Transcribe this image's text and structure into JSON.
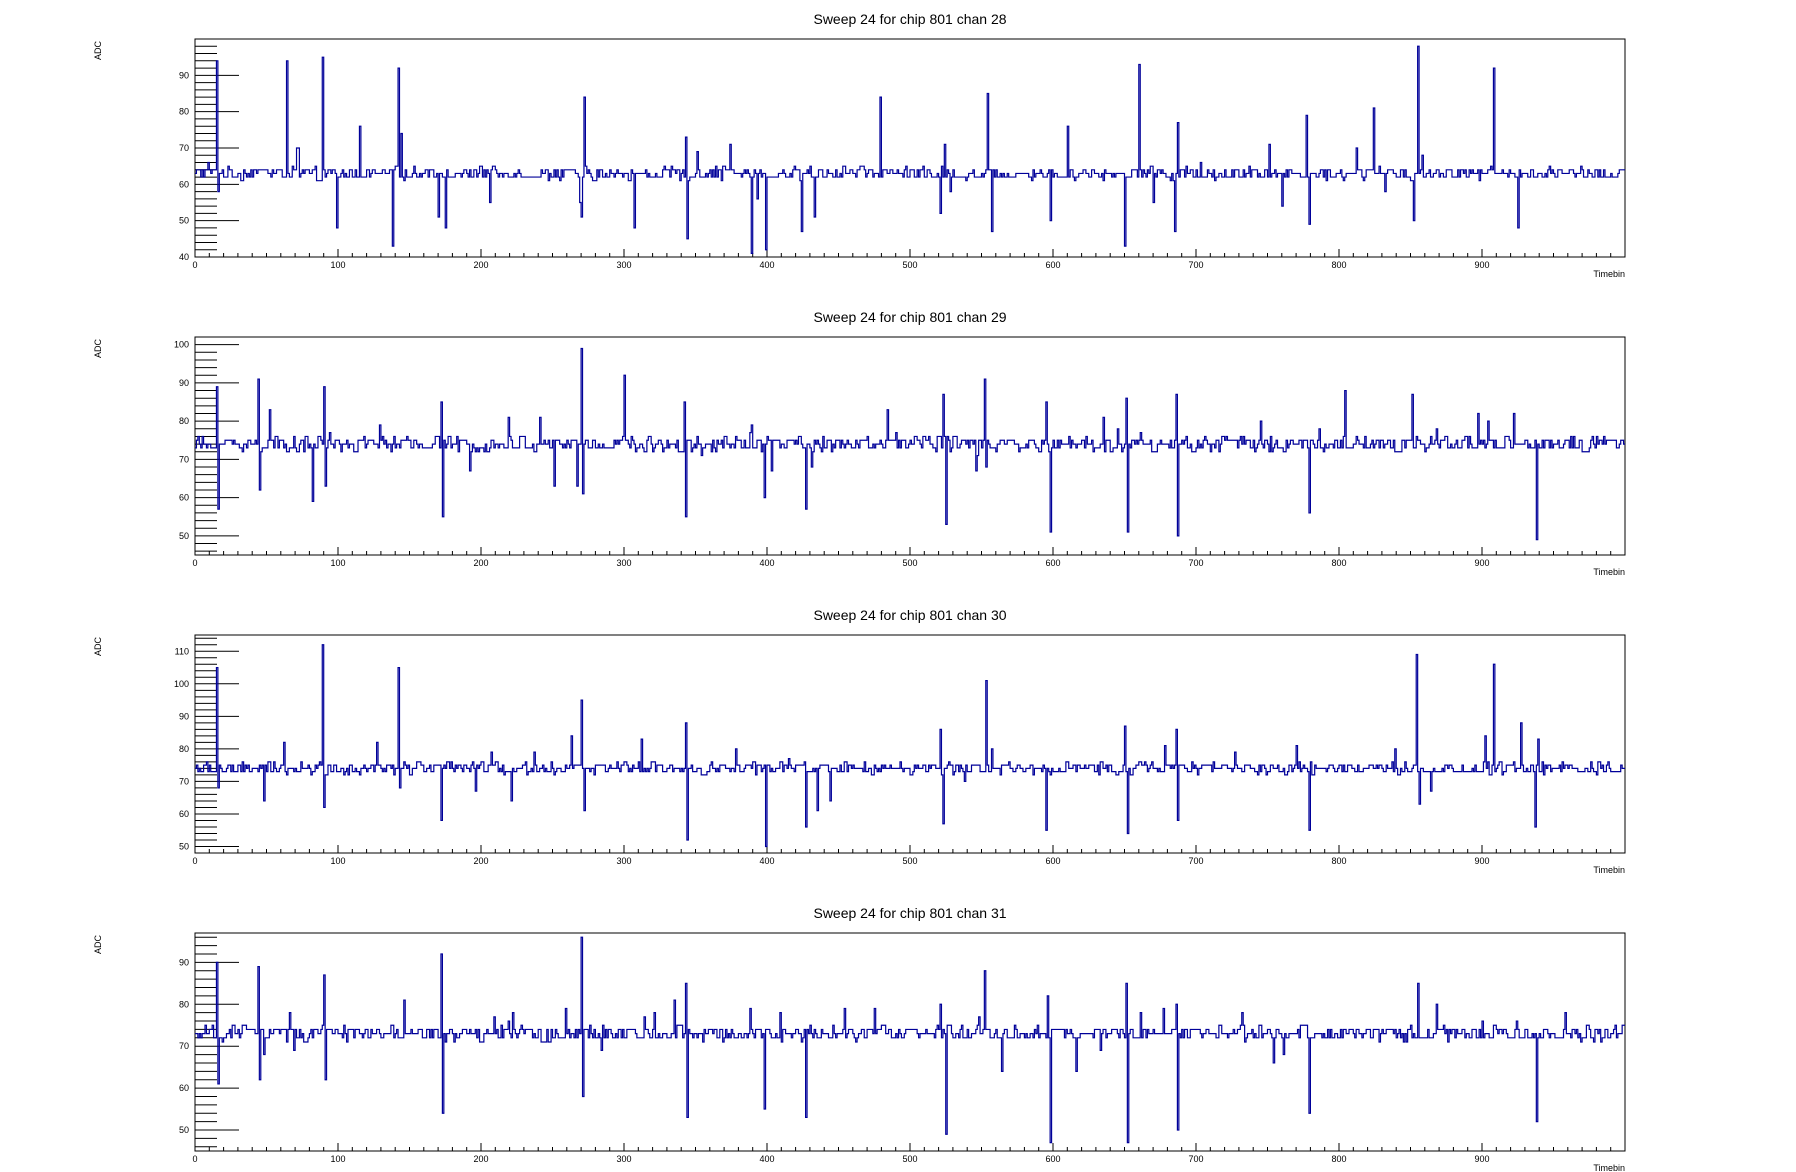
{
  "chart_data": [
    {
      "type": "line",
      "title": "Sweep 24 for chip 801 chan 28",
      "xlabel": "Timebin",
      "ylabel": "ADC",
      "xlim": [
        0,
        1000
      ],
      "ylim": [
        40,
        100
      ],
      "xticks": [
        0,
        100,
        200,
        300,
        400,
        500,
        600,
        700,
        800,
        900
      ],
      "yticks": [
        40,
        50,
        60,
        70,
        80,
        90
      ],
      "baseline": 63,
      "noise": 1.6,
      "extremes": [
        [
          64,
          94
        ],
        [
          71,
          70
        ],
        [
          72,
          70
        ],
        [
          99,
          48
        ],
        [
          115,
          76
        ],
        [
          138,
          43
        ],
        [
          206,
          55
        ],
        [
          269,
          55
        ],
        [
          351,
          69
        ],
        [
          374,
          71
        ],
        [
          389,
          41
        ],
        [
          393,
          56
        ],
        [
          433,
          51
        ],
        [
          479,
          84
        ],
        [
          524,
          71
        ],
        [
          528,
          58
        ],
        [
          610,
          76
        ],
        [
          650,
          66
        ],
        [
          660,
          93
        ],
        [
          670,
          55
        ],
        [
          703,
          66
        ],
        [
          711,
          62
        ],
        [
          751,
          71
        ],
        [
          760,
          54
        ],
        [
          793,
          64
        ],
        [
          812,
          70
        ],
        [
          824,
          81
        ],
        [
          832,
          58
        ],
        [
          858,
          68
        ]
      ],
      "spikes": [
        [
          9,
          66
        ],
        [
          15,
          94
        ],
        [
          16,
          58
        ],
        [
          89,
          95
        ],
        [
          142,
          92
        ],
        [
          144,
          74
        ],
        [
          170,
          51
        ],
        [
          175,
          48
        ],
        [
          270,
          51
        ],
        [
          272,
          84
        ],
        [
          307,
          48
        ],
        [
          343,
          73
        ],
        [
          344,
          45
        ],
        [
          399,
          42
        ],
        [
          424,
          47
        ],
        [
          521,
          52
        ],
        [
          554,
          85
        ],
        [
          557,
          47
        ],
        [
          598,
          50
        ],
        [
          650,
          43
        ],
        [
          685,
          47
        ],
        [
          687,
          77
        ],
        [
          777,
          79
        ],
        [
          779,
          49
        ],
        [
          852,
          50
        ],
        [
          855,
          98
        ],
        [
          908,
          92
        ],
        [
          925,
          48
        ]
      ]
    },
    {
      "type": "line",
      "title": "Sweep 24 for chip 801 chan 29",
      "xlabel": "Timebin",
      "ylabel": "ADC",
      "xlim": [
        0,
        1000
      ],
      "ylim": [
        45,
        102
      ],
      "xticks": [
        0,
        100,
        200,
        300,
        400,
        500,
        600,
        700,
        800,
        900
      ],
      "yticks": [
        50,
        60,
        70,
        80,
        90,
        100
      ],
      "baseline": 74,
      "noise": 1.8,
      "extremes": [
        [
          52,
          83
        ],
        [
          82,
          59
        ],
        [
          94,
          77
        ],
        [
          129,
          79
        ],
        [
          192,
          67
        ],
        [
          219,
          81
        ],
        [
          241,
          81
        ],
        [
          251,
          63
        ],
        [
          267,
          63
        ],
        [
          354,
          71
        ],
        [
          388,
          77
        ],
        [
          389,
          79
        ],
        [
          403,
          67
        ],
        [
          431,
          68
        ],
        [
          484,
          83
        ],
        [
          490,
          77
        ],
        [
          523,
          69
        ],
        [
          546,
          67
        ],
        [
          547,
          71
        ],
        [
          553,
          68
        ],
        [
          635,
          81
        ],
        [
          645,
          78
        ],
        [
          661,
          77
        ],
        [
          745,
          80
        ],
        [
          786,
          78
        ],
        [
          868,
          78
        ],
        [
          897,
          82
        ],
        [
          904,
          80
        ],
        [
          922,
          82
        ]
      ],
      "spikes": [
        [
          15,
          89
        ],
        [
          16,
          57
        ],
        [
          44,
          91
        ],
        [
          45,
          62
        ],
        [
          90,
          89
        ],
        [
          91,
          63
        ],
        [
          172,
          85
        ],
        [
          173,
          55
        ],
        [
          270,
          99
        ],
        [
          271,
          61
        ],
        [
          300,
          92
        ],
        [
          342,
          85
        ],
        [
          343,
          55
        ],
        [
          398,
          60
        ],
        [
          427,
          57
        ],
        [
          523,
          87
        ],
        [
          525,
          53
        ],
        [
          552,
          91
        ],
        [
          595,
          85
        ],
        [
          598,
          51
        ],
        [
          651,
          86
        ],
        [
          652,
          51
        ],
        [
          686,
          87
        ],
        [
          687,
          50
        ],
        [
          779,
          56
        ],
        [
          804,
          88
        ],
        [
          851,
          87
        ],
        [
          938,
          49
        ]
      ]
    },
    {
      "type": "line",
      "title": "Sweep 24 for chip 801 chan 30",
      "xlabel": "Timebin",
      "ylabel": "ADC",
      "xlim": [
        0,
        1000
      ],
      "ylim": [
        48,
        115
      ],
      "xticks": [
        0,
        100,
        200,
        300,
        400,
        500,
        600,
        700,
        800,
        900
      ],
      "yticks": [
        50,
        60,
        70,
        80,
        90,
        100,
        110
      ],
      "baseline": 74,
      "noise": 1.7,
      "extremes": [
        [
          48,
          64
        ],
        [
          62,
          82
        ],
        [
          127,
          82
        ],
        [
          196,
          67
        ],
        [
          207,
          79
        ],
        [
          221,
          64
        ],
        [
          237,
          79
        ],
        [
          263,
          84
        ],
        [
          300,
          76
        ],
        [
          312,
          83
        ],
        [
          349,
          73
        ],
        [
          378,
          80
        ],
        [
          402,
          73
        ],
        [
          415,
          77
        ],
        [
          435,
          61
        ],
        [
          444,
          64
        ],
        [
          502,
          73
        ],
        [
          522,
          72
        ],
        [
          538,
          70
        ],
        [
          557,
          80
        ],
        [
          643,
          73
        ],
        [
          678,
          81
        ],
        [
          727,
          79
        ],
        [
          770,
          81
        ],
        [
          839,
          80
        ],
        [
          864,
          67
        ],
        [
          902,
          84
        ],
        [
          939,
          83
        ]
      ],
      "spikes": [
        [
          15,
          105
        ],
        [
          16,
          68
        ],
        [
          89,
          112
        ],
        [
          90,
          62
        ],
        [
          142,
          105
        ],
        [
          143,
          68
        ],
        [
          172,
          58
        ],
        [
          270,
          95
        ],
        [
          272,
          61
        ],
        [
          343,
          88
        ],
        [
          344,
          52
        ],
        [
          399,
          50
        ],
        [
          427,
          56
        ],
        [
          521,
          86
        ],
        [
          523,
          57
        ],
        [
          553,
          101
        ],
        [
          595,
          55
        ],
        [
          650,
          87
        ],
        [
          652,
          54
        ],
        [
          686,
          86
        ],
        [
          687,
          58
        ],
        [
          779,
          55
        ],
        [
          854,
          109
        ],
        [
          856,
          63
        ],
        [
          908,
          106
        ],
        [
          927,
          88
        ],
        [
          937,
          56
        ]
      ]
    },
    {
      "type": "line",
      "title": "Sweep 24 for chip 801 chan 31",
      "xlabel": "Timebin",
      "ylabel": "ADC",
      "xlim": [
        0,
        1000
      ],
      "ylim": [
        45,
        97
      ],
      "xticks": [
        0,
        100,
        200,
        300,
        400,
        500,
        600,
        700,
        800,
        900
      ],
      "yticks": [
        50,
        60,
        70,
        80,
        90
      ],
      "baseline": 73,
      "noise": 1.6,
      "extremes": [
        [
          48,
          68
        ],
        [
          66,
          78
        ],
        [
          69,
          69
        ],
        [
          146,
          81
        ],
        [
          209,
          77
        ],
        [
          219,
          76
        ],
        [
          222,
          78
        ],
        [
          259,
          79
        ],
        [
          284,
          69
        ],
        [
          314,
          77
        ],
        [
          321,
          78
        ],
        [
          335,
          81
        ],
        [
          388,
          79
        ],
        [
          409,
          78
        ],
        [
          454,
          79
        ],
        [
          475,
          79
        ],
        [
          548,
          77
        ],
        [
          564,
          64
        ],
        [
          616,
          64
        ],
        [
          633,
          69
        ],
        [
          661,
          78
        ],
        [
          677,
          79
        ],
        [
          732,
          78
        ],
        [
          754,
          66
        ],
        [
          761,
          68
        ],
        [
          868,
          80
        ],
        [
          900,
          76
        ],
        [
          924,
          76
        ],
        [
          958,
          78
        ]
      ],
      "spikes": [
        [
          15,
          90
        ],
        [
          16,
          61
        ],
        [
          44,
          89
        ],
        [
          45,
          62
        ],
        [
          90,
          87
        ],
        [
          91,
          62
        ],
        [
          172,
          92
        ],
        [
          173,
          54
        ],
        [
          270,
          96
        ],
        [
          271,
          58
        ],
        [
          343,
          85
        ],
        [
          344,
          53
        ],
        [
          398,
          55
        ],
        [
          427,
          53
        ],
        [
          521,
          80
        ],
        [
          525,
          49
        ],
        [
          552,
          88
        ],
        [
          596,
          82
        ],
        [
          598,
          47
        ],
        [
          651,
          85
        ],
        [
          652,
          47
        ],
        [
          686,
          80
        ],
        [
          687,
          50
        ],
        [
          779,
          54
        ],
        [
          855,
          85
        ],
        [
          938,
          52
        ]
      ]
    }
  ],
  "colors": {
    "trace": "#000099",
    "axis": "#000000",
    "background": "#ffffff"
  }
}
